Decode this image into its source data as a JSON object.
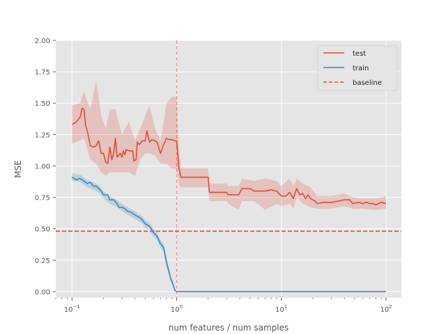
{
  "chart_data": {
    "type": "line",
    "xlabel": "num features / num samples",
    "ylabel": "MSE",
    "xscale": "log",
    "xlim": [
      0.07,
      140
    ],
    "ylim": [
      -0.05,
      2.0
    ],
    "grid": true,
    "legend_position": "top-right",
    "x_ticks": [
      {
        "value": 0.1,
        "base": "10",
        "exp": "−1"
      },
      {
        "value": 1,
        "base": "10",
        "exp": "0"
      },
      {
        "value": 10,
        "base": "10",
        "exp": "1"
      },
      {
        "value": 100,
        "base": "10",
        "exp": "2"
      }
    ],
    "y_ticks": [
      "0.00",
      "0.25",
      "0.50",
      "0.75",
      "1.00",
      "1.25",
      "1.50",
      "1.75",
      "2.00"
    ],
    "series": [
      {
        "name": "test",
        "color": "#e24a33",
        "points": [
          [
            0.1,
            1.33
          ],
          [
            0.11,
            1.35
          ],
          [
            0.12,
            1.39
          ],
          [
            0.125,
            1.46
          ],
          [
            0.13,
            1.45
          ],
          [
            0.135,
            1.32
          ],
          [
            0.14,
            1.28
          ],
          [
            0.15,
            1.16
          ],
          [
            0.16,
            1.15
          ],
          [
            0.17,
            1.16
          ],
          [
            0.18,
            1.2
          ],
          [
            0.19,
            1.1
          ],
          [
            0.2,
            1.1
          ],
          [
            0.21,
            1.03
          ],
          [
            0.22,
            1.02
          ],
          [
            0.23,
            1.15
          ],
          [
            0.24,
            1.05
          ],
          [
            0.25,
            1.1
          ],
          [
            0.26,
            1.22
          ],
          [
            0.27,
            1.07
          ],
          [
            0.29,
            1.1
          ],
          [
            0.3,
            1.07
          ],
          [
            0.31,
            1.12
          ],
          [
            0.32,
            1.09
          ],
          [
            0.33,
            1.13
          ],
          [
            0.35,
            1.12
          ],
          [
            0.38,
            1.12
          ],
          [
            0.39,
            1.04
          ],
          [
            0.41,
            1.05
          ],
          [
            0.42,
            1.19
          ],
          [
            0.44,
            1.17
          ],
          [
            0.47,
            1.2
          ],
          [
            0.5,
            1.2
          ],
          [
            0.52,
            1.28
          ],
          [
            0.55,
            1.19
          ],
          [
            0.58,
            1.21
          ],
          [
            0.62,
            1.2
          ],
          [
            0.65,
            1.19
          ],
          [
            0.7,
            1.1
          ],
          [
            0.75,
            1.17
          ],
          [
            0.8,
            1.22
          ],
          [
            0.85,
            1.21
          ],
          [
            0.9,
            1.21
          ],
          [
            0.95,
            1.2
          ],
          [
            1.0,
            1.2
          ],
          [
            1.05,
            0.98
          ],
          [
            1.1,
            0.91
          ],
          [
            1.5,
            0.91
          ],
          [
            2.0,
            0.91
          ],
          [
            2.05,
            0.79
          ],
          [
            3.0,
            0.79
          ],
          [
            3.1,
            0.77
          ],
          [
            3.9,
            0.77
          ],
          [
            4.2,
            0.82
          ],
          [
            5.0,
            0.82
          ],
          [
            5.5,
            0.8
          ],
          [
            7.0,
            0.8
          ],
          [
            8.0,
            0.81
          ],
          [
            9.0,
            0.8
          ],
          [
            10.0,
            0.76
          ],
          [
            11.0,
            0.76
          ],
          [
            12.0,
            0.79
          ],
          [
            13.0,
            0.74
          ],
          [
            14.0,
            0.82
          ],
          [
            15.0,
            0.77
          ],
          [
            16.0,
            0.78
          ],
          [
            17.0,
            0.74
          ],
          [
            18.0,
            0.77
          ],
          [
            19.0,
            0.74
          ],
          [
            21.0,
            0.72
          ],
          [
            22.0,
            0.7
          ],
          [
            25.0,
            0.71
          ],
          [
            30.0,
            0.71
          ],
          [
            35.0,
            0.72
          ],
          [
            40.0,
            0.73
          ],
          [
            45.0,
            0.73
          ],
          [
            48.0,
            0.7
          ],
          [
            55.0,
            0.71
          ],
          [
            60.0,
            0.7
          ],
          [
            65.0,
            0.71
          ],
          [
            70.0,
            0.7
          ],
          [
            75.0,
            0.7
          ],
          [
            80.0,
            0.69
          ],
          [
            90.0,
            0.71
          ],
          [
            100.0,
            0.7
          ]
        ],
        "band": [
          [
            0.1,
            1.18,
            1.48
          ],
          [
            0.12,
            1.2,
            1.5
          ],
          [
            0.13,
            1.22,
            1.6
          ],
          [
            0.135,
            1.18,
            1.55
          ],
          [
            0.15,
            1.05,
            1.45
          ],
          [
            0.17,
            1.02,
            1.68
          ],
          [
            0.19,
            0.95,
            1.4
          ],
          [
            0.21,
            0.92,
            1.3
          ],
          [
            0.23,
            0.95,
            1.45
          ],
          [
            0.26,
            0.95,
            1.45
          ],
          [
            0.3,
            0.95,
            1.25
          ],
          [
            0.35,
            0.95,
            1.35
          ],
          [
            0.4,
            0.92,
            1.2
          ],
          [
            0.45,
            1.05,
            1.3
          ],
          [
            0.5,
            1.1,
            1.4
          ],
          [
            0.55,
            1.1,
            1.48
          ],
          [
            0.62,
            1.08,
            1.3
          ],
          [
            0.7,
            1.02,
            1.2
          ],
          [
            0.8,
            1.02,
            1.5
          ],
          [
            0.9,
            0.98,
            1.55
          ],
          [
            1.0,
            0.98,
            1.55
          ],
          [
            1.05,
            0.85,
            1.15
          ],
          [
            1.1,
            0.83,
            0.98
          ],
          [
            2.0,
            0.83,
            0.98
          ],
          [
            2.05,
            0.72,
            0.86
          ],
          [
            3.0,
            0.72,
            0.86
          ],
          [
            3.1,
            0.7,
            0.84
          ],
          [
            3.9,
            0.65,
            0.84
          ],
          [
            4.2,
            0.72,
            0.9
          ],
          [
            5.5,
            0.72,
            0.88
          ],
          [
            7.0,
            0.65,
            0.9
          ],
          [
            9.0,
            0.7,
            0.88
          ],
          [
            10.0,
            0.68,
            0.84
          ],
          [
            12.0,
            0.7,
            0.9
          ],
          [
            13.0,
            0.66,
            0.84
          ],
          [
            14.0,
            0.75,
            0.9
          ],
          [
            16.0,
            0.7,
            0.86
          ],
          [
            19.0,
            0.67,
            0.83
          ],
          [
            22.0,
            0.66,
            0.76
          ],
          [
            30.0,
            0.66,
            0.76
          ],
          [
            40.0,
            0.68,
            0.78
          ],
          [
            48.0,
            0.66,
            0.75
          ],
          [
            60.0,
            0.66,
            0.74
          ],
          [
            80.0,
            0.65,
            0.74
          ],
          [
            100.0,
            0.66,
            0.76
          ]
        ]
      },
      {
        "name": "train",
        "color": "#348abd",
        "points": [
          [
            0.1,
            0.91
          ],
          [
            0.11,
            0.89
          ],
          [
            0.12,
            0.9
          ],
          [
            0.13,
            0.88
          ],
          [
            0.14,
            0.86
          ],
          [
            0.15,
            0.87
          ],
          [
            0.16,
            0.84
          ],
          [
            0.17,
            0.84
          ],
          [
            0.18,
            0.82
          ],
          [
            0.19,
            0.8
          ],
          [
            0.2,
            0.77
          ],
          [
            0.22,
            0.77
          ],
          [
            0.23,
            0.73
          ],
          [
            0.25,
            0.73
          ],
          [
            0.27,
            0.7
          ],
          [
            0.28,
            0.67
          ],
          [
            0.3,
            0.67
          ],
          [
            0.32,
            0.66
          ],
          [
            0.34,
            0.64
          ],
          [
            0.37,
            0.63
          ],
          [
            0.4,
            0.61
          ],
          [
            0.44,
            0.59
          ],
          [
            0.47,
            0.57
          ],
          [
            0.5,
            0.54
          ],
          [
            0.55,
            0.52
          ],
          [
            0.6,
            0.47
          ],
          [
            0.65,
            0.44
          ],
          [
            0.7,
            0.38
          ],
          [
            0.75,
            0.35
          ],
          [
            0.8,
            0.23
          ],
          [
            0.85,
            0.15
          ],
          [
            0.88,
            0.1
          ],
          [
            0.92,
            0.06
          ],
          [
            0.96,
            0.01
          ],
          [
            1.0,
            0.0
          ],
          [
            10.0,
            0.0
          ],
          [
            100.0,
            0.0
          ]
        ],
        "band": [
          [
            0.1,
            0.88,
            0.94
          ],
          [
            0.12,
            0.87,
            0.93
          ],
          [
            0.14,
            0.83,
            0.89
          ],
          [
            0.16,
            0.81,
            0.87
          ],
          [
            0.18,
            0.79,
            0.85
          ],
          [
            0.2,
            0.74,
            0.8
          ],
          [
            0.23,
            0.7,
            0.76
          ],
          [
            0.27,
            0.67,
            0.73
          ],
          [
            0.3,
            0.64,
            0.7
          ],
          [
            0.34,
            0.61,
            0.67
          ],
          [
            0.4,
            0.58,
            0.64
          ],
          [
            0.47,
            0.54,
            0.6
          ],
          [
            0.5,
            0.51,
            0.57
          ],
          [
            0.55,
            0.49,
            0.55
          ],
          [
            0.6,
            0.44,
            0.5
          ],
          [
            0.65,
            0.41,
            0.47
          ],
          [
            0.7,
            0.35,
            0.41
          ],
          [
            0.75,
            0.31,
            0.38
          ],
          [
            0.8,
            0.19,
            0.27
          ],
          [
            0.85,
            0.12,
            0.18
          ],
          [
            0.88,
            0.08,
            0.12
          ],
          [
            0.92,
            0.04,
            0.08
          ],
          [
            0.96,
            0.0,
            0.02
          ],
          [
            1.0,
            0.0,
            0.0
          ],
          [
            100.0,
            0.0,
            0.0
          ]
        ]
      }
    ],
    "reference_lines": {
      "baseline": {
        "name": "baseline",
        "orientation": "horizontal",
        "y": 0.48,
        "color": "#e24a33",
        "style": "dashed"
      },
      "interpolation_threshold": {
        "orientation": "vertical",
        "x": 1.0,
        "color": "#e24a33",
        "style": "dashed"
      }
    }
  }
}
